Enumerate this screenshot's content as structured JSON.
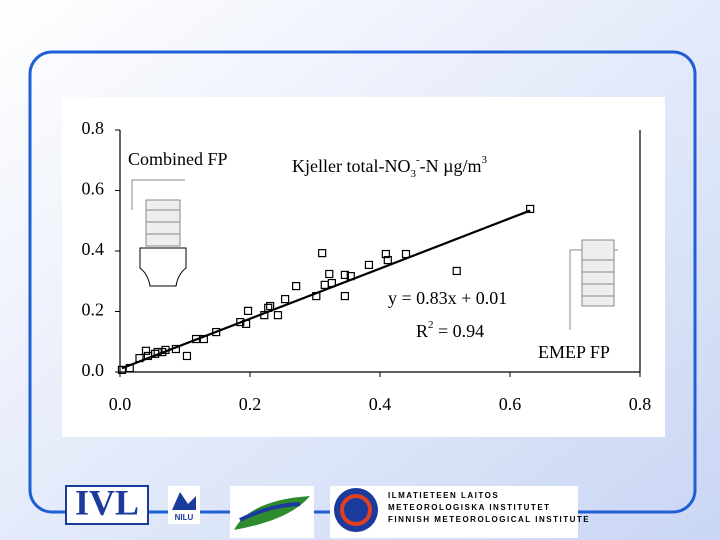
{
  "chart_data": {
    "type": "scatter",
    "title_parts": [
      "Kjeller total-NO",
      "3",
      "-",
      "-N µg/m",
      "3"
    ],
    "annotations": [
      "Combined FP",
      "EMEP FP"
    ],
    "trendline": {
      "slope": 0.83,
      "intercept": 0.01,
      "label": "y = 0.83x + 0.01",
      "r2_parts": [
        "R",
        "2",
        " = 0.94"
      ]
    },
    "x": [
      0.003,
      0.015,
      0.03,
      0.04,
      0.043,
      0.054,
      0.058,
      0.065,
      0.07,
      0.086,
      0.103,
      0.117,
      0.129,
      0.148,
      0.185,
      0.194,
      0.197,
      0.222,
      0.228,
      0.231,
      0.243,
      0.254,
      0.271,
      0.302,
      0.311,
      0.315,
      0.322,
      0.326,
      0.346,
      0.346,
      0.355,
      0.383,
      0.409,
      0.412,
      0.44,
      0.518,
      0.631
    ],
    "values": [
      0.007,
      0.013,
      0.046,
      0.07,
      0.053,
      0.06,
      0.066,
      0.066,
      0.073,
      0.076,
      0.053,
      0.109,
      0.109,
      0.132,
      0.165,
      0.159,
      0.202,
      0.188,
      0.212,
      0.218,
      0.188,
      0.241,
      0.284,
      0.251,
      0.393,
      0.288,
      0.324,
      0.294,
      0.321,
      0.251,
      0.317,
      0.354,
      0.39,
      0.37,
      0.39,
      0.334,
      0.539
    ],
    "color": "#000000",
    "xlim": [
      0,
      0.8
    ],
    "ylim": [
      0,
      0.8
    ],
    "xticks": [
      {
        "value": 0,
        "label": "0.0"
      },
      0.2,
      0.4,
      0.6,
      0.8
    ],
    "yticks": [
      {
        "value": 0,
        "label": "0.0"
      },
      0.2,
      0.4,
      0.6,
      0.8
    ]
  },
  "logos": {
    "ivl": "IVL",
    "nilu": "NILU",
    "fmi": [
      "ILMATIETEEN LAITOS",
      "METEOROLOGISKA INSTITUTET",
      "FINNISH METEOROLOGICAL INSTITUTE"
    ]
  }
}
